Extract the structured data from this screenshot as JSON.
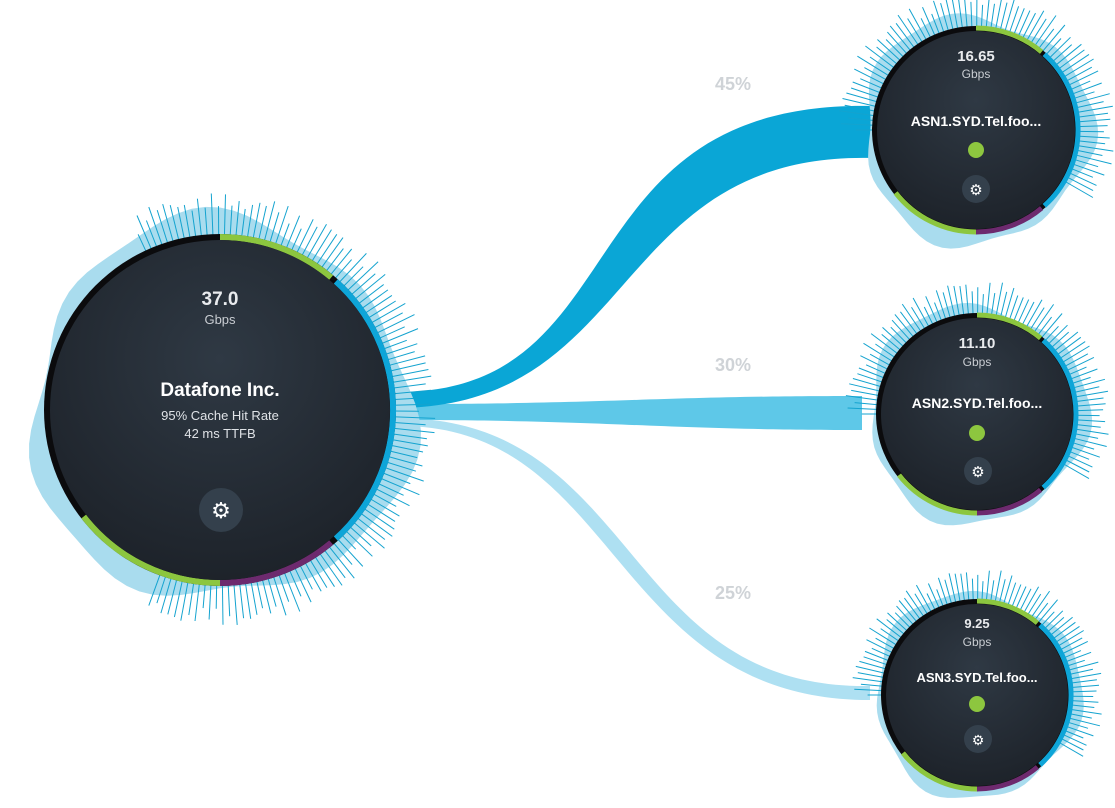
{
  "colors": {
    "halo": "#a9dcee",
    "tick": "#14a3cf",
    "node_bg_top": "#2f3944",
    "node_bg_bottom": "#1c2128",
    "ring_base": "#0b0b0d",
    "green": "#8cc63f",
    "blue": "#0ea5d8",
    "purple": "#6d2a6e",
    "status_ok": "#8dc63f",
    "flow1": "#0aa6d6",
    "flow2": "#5ec8e8",
    "flow3": "#aee0f2",
    "percent_label": "#cfd3d7"
  },
  "source": {
    "value": "37.0",
    "unit": "Gbps",
    "name": "Datafone Inc.",
    "stats": [
      "95% Cache Hit Rate",
      "42 ms TTFB"
    ],
    "icon": "gear-icon"
  },
  "links": [
    {
      "percent_label": "45%",
      "share": 0.45,
      "target": {
        "value": "16.65",
        "unit": "Gbps",
        "name": "ASN1.SYD.Tel.foo...",
        "status": "ok",
        "icon": "gear-icon"
      }
    },
    {
      "percent_label": "30%",
      "share": 0.3,
      "target": {
        "value": "11.10",
        "unit": "Gbps",
        "name": "ASN2.SYD.Tel.foo...",
        "status": "ok",
        "icon": "gear-icon"
      }
    },
    {
      "percent_label": "25%",
      "share": 0.25,
      "target": {
        "value": "9.25",
        "unit": "Gbps",
        "name": "ASN3.SYD.Tel.foo...",
        "status": "ok",
        "icon": "gear-icon"
      }
    }
  ]
}
